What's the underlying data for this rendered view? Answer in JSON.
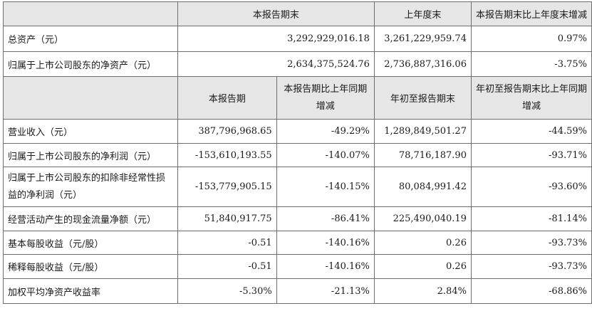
{
  "header1": [
    "本报告期末",
    "上年度末",
    "本报告期末比上年度末增减"
  ],
  "top_rows": [
    {
      "label": "总资产（元）",
      "values": [
        "3,292,929,016.18",
        "3,261,229,959.74",
        "0.97%"
      ]
    },
    {
      "label": "归属于上市公司股东的净资产（元）",
      "values": [
        "2,634,375,524.76",
        "2,736,887,316.06",
        "-3.75%"
      ]
    }
  ],
  "header2": [
    "本报告期",
    "本报告期比上年同期增减",
    "年初至报告期末",
    "年初至报告期末比上年同期增减"
  ],
  "rows": [
    {
      "label": "营业收入（元）",
      "values": [
        "387,796,968.65",
        "-49.29%",
        "1,289,849,501.27",
        "-44.59%"
      ]
    },
    {
      "label": "归属于上市公司股东的净利润（元）",
      "values": [
        "-153,610,193.55",
        "-140.07%",
        "78,716,187.90",
        "-93.71%"
      ]
    },
    {
      "label": "归属于上市公司股东的扣除非经常性损益的净利润（元）",
      "values": [
        "-153,779,905.15",
        "-140.15%",
        "80,084,991.42",
        "-93.60%"
      ]
    },
    {
      "label": "经营活动产生的现金流量净额（元）",
      "values": [
        "51,840,917.75",
        "-86.41%",
        "225,490,040.19",
        "-81.14%"
      ]
    },
    {
      "label": "基本每股收益（元/股）",
      "values": [
        "-0.51",
        "-140.16%",
        "0.26",
        "-93.73%"
      ]
    },
    {
      "label": "稀释每股收益（元/股）",
      "values": [
        "-0.51",
        "-140.16%",
        "0.26",
        "-93.73%"
      ]
    },
    {
      "label": "加权平均净资产收益率",
      "values": [
        "-5.30%",
        "-21.13%",
        "2.84%",
        "-68.86%"
      ]
    }
  ]
}
